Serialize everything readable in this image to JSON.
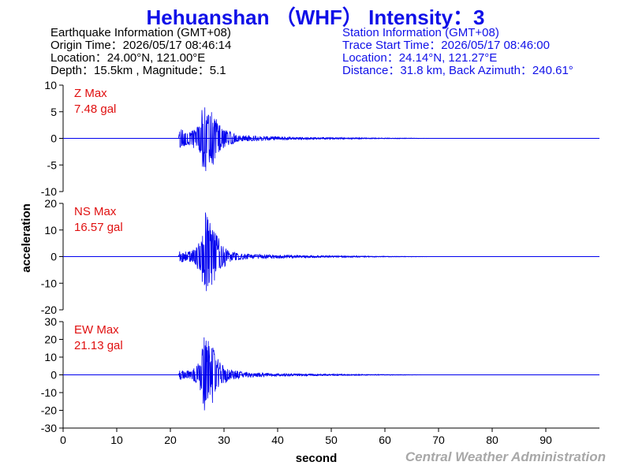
{
  "title": "Hehuanshan （WHF） Intensity：3",
  "earthquake_info": {
    "header": "Earthquake Information  (GMT+08)",
    "origin_time": "Origin Time：2026/05/17 08:46:14",
    "location": "Location：24.00°N, 121.00°E",
    "depth_magnitude": "Depth：15.5km , Magnitude：5.1"
  },
  "station_info": {
    "header": "Station Information  (GMT+08)",
    "trace_start": "Trace Start Time：2026/05/17 08:46:00",
    "location": "Location：24.14°N, 121.27°E",
    "distance": "Distance：31.8 km, Back Azimuth：240.61°"
  },
  "watermark": "Central Weather Administration",
  "colors": {
    "title": "#1010e8",
    "trace": "#0000ee",
    "label": "#e01010",
    "watermark": "#a8a8a8"
  },
  "chart_data": {
    "type": "line",
    "xlabel": "second",
    "ylabel": "acceleration",
    "xlim": [
      0,
      100
    ],
    "xticks": [
      0,
      10,
      20,
      30,
      40,
      50,
      60,
      70,
      80,
      90
    ],
    "panels": [
      {
        "component": "Z",
        "label_line1": "Z Max",
        "label_line2": "7.48 gal",
        "max_abs_gal": 7.48,
        "ylim": [
          -10,
          10
        ],
        "yticks": [
          10,
          5,
          0,
          -5,
          -10
        ],
        "envelope": [
          [
            21.5,
            0
          ],
          [
            21.8,
            2.0
          ],
          [
            22.5,
            1.5
          ],
          [
            24.0,
            1.5
          ],
          [
            25.5,
            3.0
          ],
          [
            26.2,
            7.48
          ],
          [
            27.0,
            5.5
          ],
          [
            28.0,
            5.0
          ],
          [
            29.0,
            3.0
          ],
          [
            30.5,
            1.5
          ],
          [
            33.0,
            0.6
          ],
          [
            40.0,
            0.3
          ],
          [
            50.0,
            0.15
          ],
          [
            60.0,
            0.08
          ],
          [
            68.0,
            0.03
          ],
          [
            70.0,
            0
          ]
        ]
      },
      {
        "component": "NS",
        "label_line1": "NS Max",
        "label_line2": "16.57 gal",
        "max_abs_gal": 16.57,
        "ylim": [
          -20,
          20
        ],
        "yticks": [
          20,
          10,
          0,
          -10,
          -20
        ],
        "envelope": [
          [
            21.5,
            0
          ],
          [
            21.8,
            2.5
          ],
          [
            22.5,
            2.0
          ],
          [
            24.0,
            2.0
          ],
          [
            25.5,
            6.0
          ],
          [
            26.5,
            16.57
          ],
          [
            27.5,
            13.0
          ],
          [
            28.5,
            9.0
          ],
          [
            29.5,
            5.0
          ],
          [
            31.0,
            2.0
          ],
          [
            34.0,
            1.0
          ],
          [
            40.0,
            0.6
          ],
          [
            50.0,
            0.3
          ],
          [
            60.0,
            0.15
          ],
          [
            68.0,
            0.05
          ],
          [
            70.0,
            0
          ]
        ]
      },
      {
        "component": "EW",
        "label_line1": "EW Max",
        "label_line2": "21.13 gal",
        "max_abs_gal": 21.13,
        "ylim": [
          -30,
          30
        ],
        "yticks": [
          30,
          20,
          10,
          0,
          -10,
          -20,
          -30
        ],
        "envelope": [
          [
            21.5,
            0
          ],
          [
            21.8,
            3.0
          ],
          [
            22.5,
            2.5
          ],
          [
            24.0,
            2.5
          ],
          [
            25.5,
            8.0
          ],
          [
            26.3,
            21.13
          ],
          [
            27.5,
            18.0
          ],
          [
            28.5,
            12.0
          ],
          [
            29.5,
            6.0
          ],
          [
            31.0,
            3.0
          ],
          [
            34.0,
            1.5
          ],
          [
            40.0,
            0.8
          ],
          [
            50.0,
            0.4
          ],
          [
            60.0,
            0.2
          ],
          [
            68.0,
            0.05
          ],
          [
            70.0,
            0
          ]
        ]
      }
    ]
  }
}
